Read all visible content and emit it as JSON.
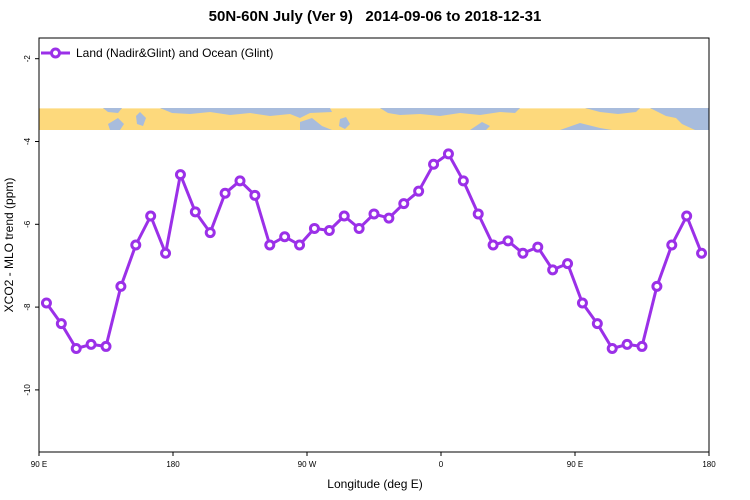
{
  "chart_data": {
    "type": "line",
    "title": "50N-60N July (Ver 9)   2014-09-06 to 2018-12-31",
    "xlabel": "Longitude (deg E)",
    "ylabel": "XCO2 - MLO trend (ppm)",
    "x_tick_labels": [
      "90 E",
      "180",
      "90 W",
      "0",
      "90 E",
      "180"
    ],
    "x_ticks": [
      90,
      180,
      270,
      360,
      450,
      540
    ],
    "xlim": [
      90,
      540
    ],
    "y_ticks": [
      -2,
      -4,
      -6,
      -8,
      -10
    ],
    "ylim": [
      -11.5,
      -1.5
    ],
    "legend_position": "top-left",
    "map_strip_y": [
      -3.2,
      -3.75
    ],
    "map_colors": {
      "land": "#fdd97c",
      "ocean": "#a8bcdc"
    },
    "series": [
      {
        "name": "Land (Nadir&Glint) and Ocean (Glint)",
        "color": "#9b30e8",
        "x": [
          95,
          105,
          115,
          125,
          135,
          145,
          155,
          165,
          175,
          185,
          195,
          205,
          215,
          225,
          235,
          245,
          255,
          265,
          275,
          285,
          295,
          305,
          315,
          325,
          335,
          345,
          355,
          365,
          375,
          385,
          395,
          405,
          415,
          425,
          435,
          445,
          455,
          465,
          475,
          485,
          495,
          505,
          515,
          525,
          535
        ],
        "values": [
          -7.9,
          -8.4,
          -9.0,
          -8.9,
          -8.95,
          -7.5,
          -6.5,
          -5.8,
          -6.7,
          -4.8,
          -5.7,
          -6.2,
          -5.25,
          -4.95,
          -5.3,
          -6.5,
          -6.3,
          -6.5,
          -6.1,
          -6.15,
          -5.8,
          -6.1,
          -5.75,
          -5.85,
          -5.5,
          -5.2,
          -4.55,
          -4.3,
          -4.95,
          -5.75,
          -6.5,
          -6.4,
          -6.7,
          -6.55,
          -7.1,
          -6.95,
          -7.9,
          -8.4,
          -9.0,
          -8.9,
          -8.95,
          -7.5,
          -6.5,
          -5.8,
          -6.7
        ]
      }
    ]
  }
}
